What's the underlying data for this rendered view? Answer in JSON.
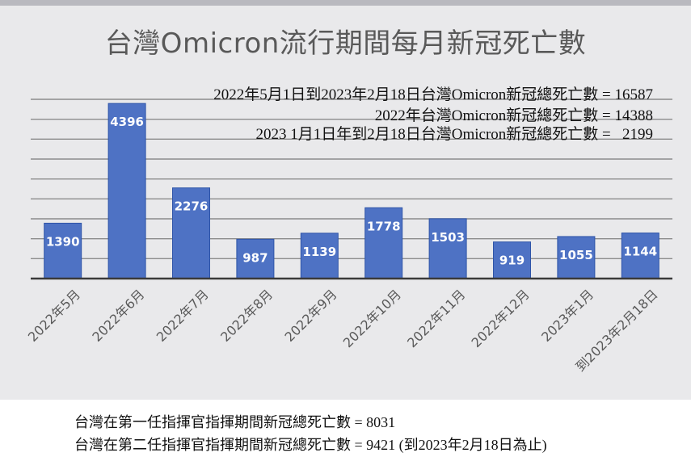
{
  "chart_data": {
    "type": "bar",
    "title": "台灣Omicron流行期間每月新冠死亡數",
    "categories": [
      "2022年5月",
      "2022年6月",
      "2022年7月",
      "2022年8月",
      "2022年9月",
      "2022年10月",
      "2022年11月",
      "2022年12月",
      "2023年1月",
      "到2023年2月18日"
    ],
    "values": [
      1390,
      4396,
      2276,
      987,
      1139,
      1778,
      1503,
      919,
      1055,
      1144
    ],
    "ylim": [
      0,
      4500
    ],
    "grid": true,
    "annotations": [
      "2022年5月1日到2023年2月18日台灣Omicron新冠總死亡數 = 16587",
      "2022年台灣Omicron新冠總死亡數 = 14388",
      "2023 1月1日年到2月18日台灣Omicron新冠總死亡數 =   2199"
    ]
  },
  "colors": {
    "bar": "#4e72c4",
    "bar_edge": "#2f55a8",
    "background": "#e9e9eb",
    "grid": "#8c8c8c"
  },
  "footer": {
    "line1": "台灣在第一任指揮官指揮期間新冠總死亡數 = 8031",
    "line2": "台灣在第二任指揮官指揮期間新冠總死亡數 = 9421 (到2023年2月18日為止)"
  }
}
